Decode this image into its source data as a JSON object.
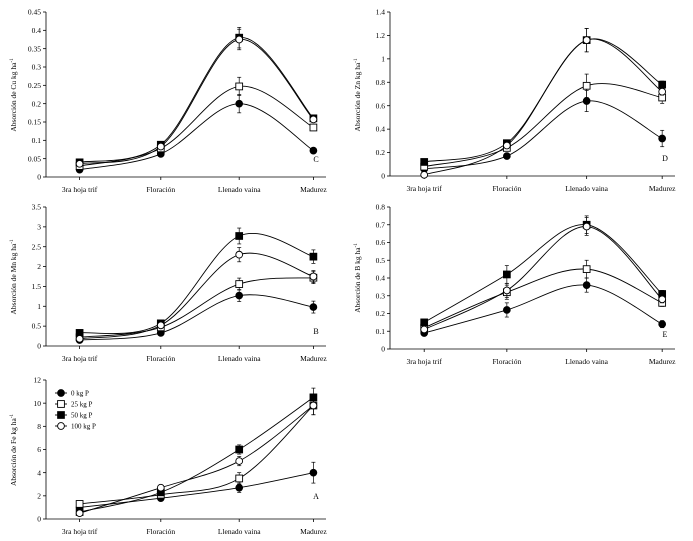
{
  "chart_data": [
    {
      "type": "line",
      "panel_letter": "C",
      "ylabel_main": "Absorción de Cu kg ha",
      "ylabel_sup": "-1",
      "categories": [
        "3ra hoja trif",
        "Floración",
        "Llenado vaina",
        "Madurez"
      ],
      "ylim": [
        0,
        0.45
      ],
      "yticks": [
        0,
        0.05,
        0.1,
        0.15,
        0.2,
        0.25,
        0.3,
        0.35,
        0.4,
        0.45
      ],
      "ytick_labels": [
        "0",
        "0.05",
        "0.1",
        "0.15",
        "0.2",
        "0.25",
        "0.3",
        "0.35",
        "0.4",
        "0.45"
      ],
      "series": [
        {
          "name": "0 kg P",
          "marker": "filled-circle",
          "values": [
            0.02,
            0.063,
            0.2,
            0.072
          ],
          "err": [
            0.003,
            0.005,
            0.025,
            0.004
          ]
        },
        {
          "name": "25 kg P",
          "marker": "open-square",
          "values": [
            0.03,
            0.078,
            0.247,
            0.135
          ],
          "err": [
            0.003,
            0.006,
            0.025,
            0.008
          ]
        },
        {
          "name": "50 kg P",
          "marker": "filled-square",
          "values": [
            0.04,
            0.088,
            0.38,
            0.16
          ],
          "err": [
            0.003,
            0.006,
            0.028,
            0.006
          ]
        },
        {
          "name": "100 kg P",
          "marker": "open-circle",
          "values": [
            0.036,
            0.083,
            0.375,
            0.157
          ],
          "err": [
            0.003,
            0.006,
            0.028,
            0.006
          ]
        }
      ]
    },
    {
      "type": "line",
      "panel_letter": "D",
      "ylabel_main": "Absorción de Zn kg ha",
      "ylabel_sup": "-1",
      "categories": [
        "3ra hoja trif",
        "Floración",
        "Llenado vaina",
        "Madurez"
      ],
      "ylim": [
        0,
        1.4
      ],
      "yticks": [
        0,
        0.2,
        0.4,
        0.6,
        0.8,
        1,
        1.2,
        1.4
      ],
      "ytick_labels": [
        "0",
        "0.2",
        "0.4",
        "0.6",
        "0.8",
        "1",
        "1.2",
        "1.4"
      ],
      "series": [
        {
          "name": "0 kg P",
          "marker": "filled-circle",
          "values": [
            0.06,
            0.17,
            0.64,
            0.32
          ],
          "err": [
            0.01,
            0.02,
            0.09,
            0.07
          ]
        },
        {
          "name": "25 kg P",
          "marker": "open-square",
          "values": [
            0.08,
            0.24,
            0.77,
            0.67
          ],
          "err": [
            0.01,
            0.02,
            0.1,
            0.05
          ]
        },
        {
          "name": "50 kg P",
          "marker": "filled-square",
          "values": [
            0.12,
            0.28,
            1.16,
            0.78
          ],
          "err": [
            0.01,
            0.02,
            0.1,
            0.03
          ]
        },
        {
          "name": "100 kg P",
          "marker": "open-circle",
          "values": [
            0.01,
            0.26,
            1.16,
            0.72
          ],
          "err": [
            0.01,
            0.02,
            0.1,
            0.03
          ]
        }
      ]
    },
    {
      "type": "line",
      "panel_letter": "B",
      "ylabel_main": "Absorción de Mn kg ha",
      "ylabel_sup": "-1",
      "categories": [
        "3ra hoja trif",
        "Floración",
        "Llenado vaina",
        "Madurez"
      ],
      "ylim": [
        0,
        3.5
      ],
      "yticks": [
        0,
        0.5,
        1,
        1.5,
        2,
        2.5,
        3,
        3.5
      ],
      "ytick_labels": [
        "0",
        "0.5",
        "1",
        "1.5",
        "2",
        "2.5",
        "3",
        "3.5"
      ],
      "series": [
        {
          "name": "0 kg P",
          "marker": "filled-circle",
          "values": [
            0.15,
            0.33,
            1.27,
            0.98
          ],
          "err": [
            0.03,
            0.05,
            0.15,
            0.15
          ]
        },
        {
          "name": "25 kg P",
          "marker": "open-square",
          "values": [
            0.22,
            0.47,
            1.56,
            1.72
          ],
          "err": [
            0.03,
            0.05,
            0.15,
            0.15
          ]
        },
        {
          "name": "50 kg P",
          "marker": "filled-square",
          "values": [
            0.33,
            0.57,
            2.77,
            2.25
          ],
          "err": [
            0.03,
            0.05,
            0.2,
            0.17
          ]
        },
        {
          "name": "100 kg P",
          "marker": "open-circle",
          "values": [
            0.18,
            0.52,
            2.3,
            1.75
          ],
          "err": [
            0.03,
            0.05,
            0.18,
            0.15
          ]
        }
      ]
    },
    {
      "type": "line",
      "panel_letter": "E",
      "ylabel_main": "Absorción de B kg ha",
      "ylabel_sup": "-1",
      "categories": [
        "3ra hoja trif",
        "Floración",
        "Llenado vaina",
        "Madurez"
      ],
      "ylim": [
        0,
        0.8
      ],
      "yticks": [
        0,
        0.1,
        0.2,
        0.3,
        0.4,
        0.5,
        0.6,
        0.7,
        0.8
      ],
      "ytick_labels": [
        "0",
        "0.1",
        "0.2",
        "0.3",
        "0.4",
        "0.5",
        "0.6",
        "0.7",
        "0.8"
      ],
      "series": [
        {
          "name": "0 kg P",
          "marker": "filled-circle",
          "values": [
            0.09,
            0.22,
            0.36,
            0.14
          ],
          "err": [
            0.01,
            0.04,
            0.04,
            0.02
          ]
        },
        {
          "name": "25 kg P",
          "marker": "open-square",
          "values": [
            0.12,
            0.32,
            0.45,
            0.26
          ],
          "err": [
            0.01,
            0.04,
            0.05,
            0.02
          ]
        },
        {
          "name": "50 kg P",
          "marker": "filled-square",
          "values": [
            0.15,
            0.42,
            0.7,
            0.31
          ],
          "err": [
            0.01,
            0.05,
            0.05,
            0.02
          ]
        },
        {
          "name": "100 kg P",
          "marker": "open-circle",
          "values": [
            0.11,
            0.33,
            0.69,
            0.28
          ],
          "err": [
            0.01,
            0.04,
            0.05,
            0.02
          ]
        }
      ]
    },
    {
      "type": "line",
      "panel_letter": "A",
      "ylabel_main": "Absorción de Fe kg ha",
      "ylabel_sup": "-1",
      "categories": [
        "3ra hoja trif",
        "Floración",
        "Llenado vaina",
        "Madurez"
      ],
      "ylim": [
        0,
        12
      ],
      "yticks": [
        0,
        2,
        4,
        6,
        8,
        10,
        12
      ],
      "ytick_labels": [
        "0",
        "2",
        "4",
        "6",
        "8",
        "10",
        "12"
      ],
      "legend": {
        "position": "top-left",
        "entries": [
          "0 kg P",
          "25 kg P",
          "50 kg P",
          "100 kg P"
        ]
      },
      "series": [
        {
          "name": "0 kg P",
          "marker": "filled-circle",
          "values": [
            1.0,
            1.8,
            2.7,
            4.0
          ],
          "err": [
            0.2,
            0.2,
            0.4,
            0.9
          ]
        },
        {
          "name": "25 kg P",
          "marker": "open-square",
          "values": [
            1.3,
            2.1,
            3.5,
            9.8
          ],
          "err": [
            0.2,
            0.2,
            0.5,
            0.8
          ]
        },
        {
          "name": "50 kg P",
          "marker": "filled-square",
          "values": [
            0.6,
            2.3,
            6.0,
            10.5
          ],
          "err": [
            0.2,
            0.2,
            0.4,
            0.8
          ]
        },
        {
          "name": "100 kg P",
          "marker": "open-circle",
          "values": [
            0.5,
            2.7,
            5.0,
            9.8
          ],
          "err": [
            0.2,
            0.2,
            0.4,
            0.8
          ]
        }
      ]
    }
  ]
}
